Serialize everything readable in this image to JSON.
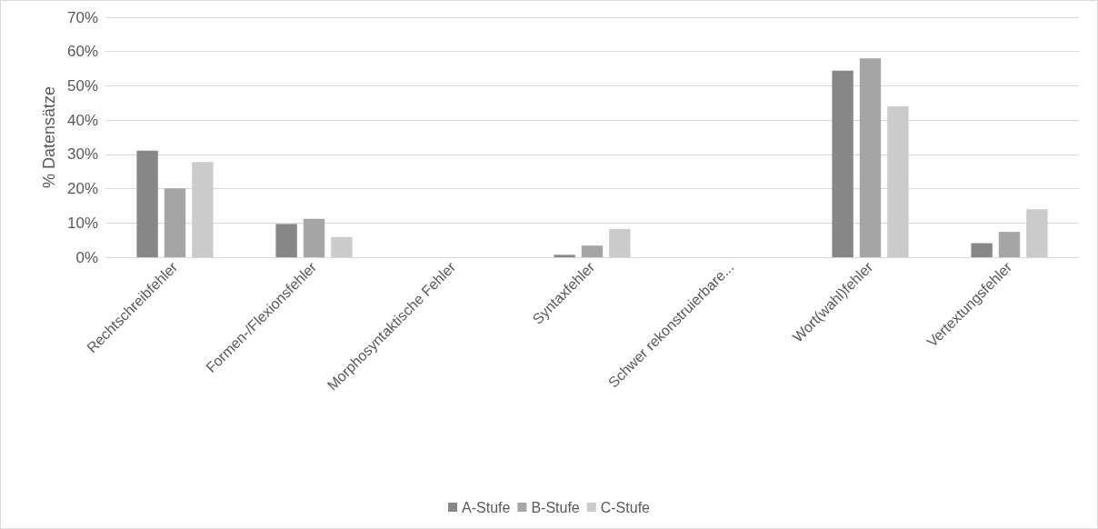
{
  "chart_data": {
    "type": "bar",
    "ylabel": "% Datensätze",
    "categories": [
      "Rechtschreibfehler",
      "Formen-/Flexionsfehler",
      "Morphosyntaktische Fehler",
      "Syntaxfehler",
      "Schwer rekonstruierbare...",
      "Wort(wahl)fehler",
      "Vertextungsfehler"
    ],
    "series": [
      {
        "name": "A-Stufe",
        "color": "#878787",
        "values": [
          31.1,
          9.7,
          0,
          0.7,
          0,
          54.4,
          4.1
        ]
      },
      {
        "name": "B-Stufe",
        "color": "#a5a5a5",
        "values": [
          20.1,
          11.2,
          0,
          3.4,
          0,
          58.0,
          7.4
        ]
      },
      {
        "name": "C-Stufe",
        "color": "#cbcbcb",
        "values": [
          27.8,
          5.9,
          0,
          8.2,
          0,
          44.0,
          14.0
        ]
      }
    ],
    "ylim": [
      0,
      70
    ],
    "yticks": [
      {
        "value": 0,
        "label": "0%"
      },
      {
        "value": 10,
        "label": "10%"
      },
      {
        "value": 20,
        "label": "20%"
      },
      {
        "value": 30,
        "label": "30%"
      },
      {
        "value": 40,
        "label": "40%"
      },
      {
        "value": 50,
        "label": "50%"
      },
      {
        "value": 60,
        "label": "60%"
      },
      {
        "value": 70,
        "label": "70%"
      }
    ],
    "grid": "y",
    "legend": "bottom"
  }
}
